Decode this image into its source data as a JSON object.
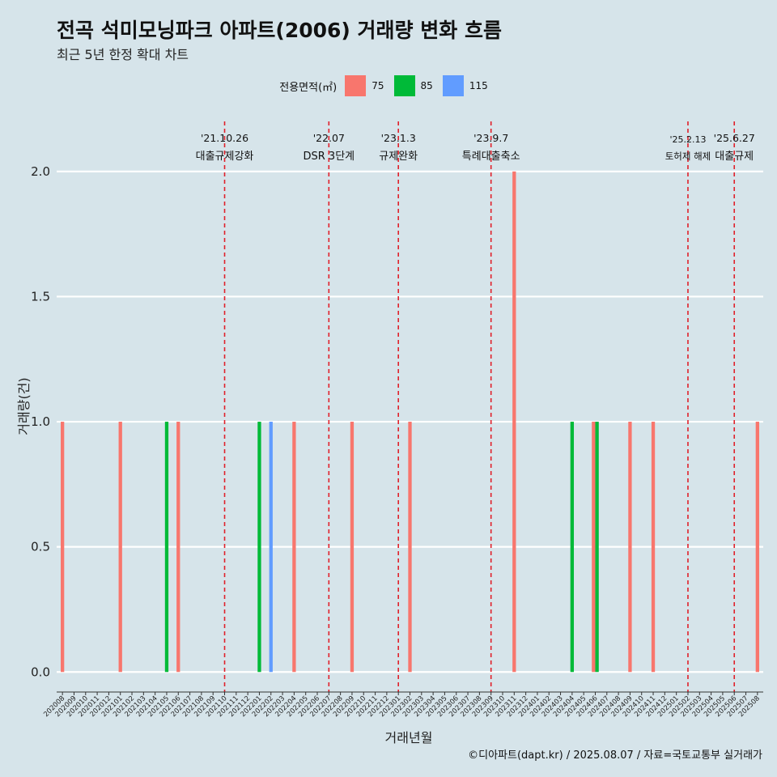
{
  "header": {
    "title": "전곡 석미모닝파크 아파트(2006) 거래량 변화 흐름",
    "subtitle": "최근 5년 한정 확대 차트"
  },
  "legend": {
    "title": "전용면적(㎡)",
    "items": [
      {
        "label": "75",
        "color": "#f8766d"
      },
      {
        "label": "85",
        "color": "#00ba38"
      },
      {
        "label": "115",
        "color": "#619cff"
      }
    ]
  },
  "axes": {
    "xlabel": "거래년월",
    "ylabel": "거래량(건)"
  },
  "caption": "©디아파트(dapt.kr) / 2025.08.07 / 자료=국토교통부 실거래가",
  "colors": {
    "background": "#d6e4ea",
    "gridline": "#ffffff",
    "event_line": "#e0202a"
  },
  "chart_data": {
    "type": "bar",
    "categories": [
      "202008",
      "202009",
      "202010",
      "202011",
      "202012",
      "202101",
      "202102",
      "202103",
      "202104",
      "202105",
      "202106",
      "202107",
      "202108",
      "202109",
      "202110",
      "202111",
      "202112",
      "202201",
      "202202",
      "202203",
      "202204",
      "202205",
      "202206",
      "202207",
      "202208",
      "202209",
      "202210",
      "202211",
      "202212",
      "202301",
      "202302",
      "202303",
      "202304",
      "202305",
      "202306",
      "202307",
      "202308",
      "202309",
      "202310",
      "202311",
      "202312",
      "202401",
      "202402",
      "202403",
      "202404",
      "202405",
      "202406",
      "202407",
      "202408",
      "202409",
      "202410",
      "202411",
      "202412",
      "202501",
      "202502",
      "202503",
      "202504",
      "202505",
      "202506",
      "202507",
      "202508"
    ],
    "series": [
      {
        "name": "75",
        "color": "#f8766d",
        "values": [
          1,
          0,
          0,
          0,
          0,
          1,
          0,
          0,
          0,
          0,
          1,
          0,
          0,
          0,
          0,
          0,
          0,
          0,
          0,
          0,
          1,
          0,
          0,
          0,
          0,
          1,
          0,
          0,
          0,
          0,
          1,
          0,
          0,
          0,
          0,
          0,
          0,
          0,
          0,
          2,
          0,
          0,
          0,
          0,
          0,
          0,
          1,
          0,
          0,
          1,
          0,
          1,
          0,
          0,
          0,
          0,
          0,
          0,
          0,
          0,
          1
        ]
      },
      {
        "name": "85",
        "color": "#00ba38",
        "values": [
          0,
          0,
          0,
          0,
          0,
          0,
          0,
          0,
          0,
          1,
          0,
          0,
          0,
          0,
          0,
          0,
          0,
          1,
          0,
          0,
          0,
          0,
          0,
          0,
          0,
          0,
          0,
          0,
          0,
          0,
          0,
          0,
          0,
          0,
          0,
          0,
          0,
          0,
          0,
          0,
          0,
          0,
          0,
          0,
          1,
          0,
          1,
          0,
          0,
          0,
          0,
          0,
          0,
          0,
          0,
          0,
          0,
          0,
          0,
          0,
          0
        ]
      },
      {
        "name": "115",
        "color": "#619cff",
        "values": [
          0,
          0,
          0,
          0,
          0,
          0,
          0,
          0,
          0,
          0,
          0,
          0,
          0,
          0,
          0,
          0,
          0,
          0,
          1,
          0,
          0,
          0,
          0,
          0,
          0,
          0,
          0,
          0,
          0,
          0,
          0,
          0,
          0,
          0,
          0,
          0,
          0,
          0,
          0,
          0,
          0,
          0,
          0,
          0,
          0,
          0,
          0,
          0,
          0,
          0,
          0,
          0,
          0,
          0,
          0,
          0,
          0,
          0,
          0,
          0,
          0
        ]
      }
    ],
    "ylim": [
      -0.08,
      2.2
    ],
    "yticks": [
      0.0,
      0.5,
      1.0,
      1.5,
      2.0
    ],
    "ytick_labels": [
      "0.0",
      "0.5",
      "1.0",
      "1.5",
      "2.0"
    ],
    "grid": true,
    "legend_position": "top",
    "events": [
      {
        "x": "202110",
        "date": "'21.10.26",
        "label": "대출규제강화"
      },
      {
        "x": "202207",
        "date": "'22.07",
        "label": "DSR 3단계"
      },
      {
        "x": "202301",
        "date": "'23.1.3",
        "label": "규제완화"
      },
      {
        "x": "202309",
        "date": "'23.9.7",
        "label": "특례대출축소"
      },
      {
        "x": "202502",
        "date": "'25.2.13",
        "label": "토허제 해제"
      },
      {
        "x": "202506",
        "date": "'25.6.27",
        "label": "대출규제"
      }
    ]
  }
}
